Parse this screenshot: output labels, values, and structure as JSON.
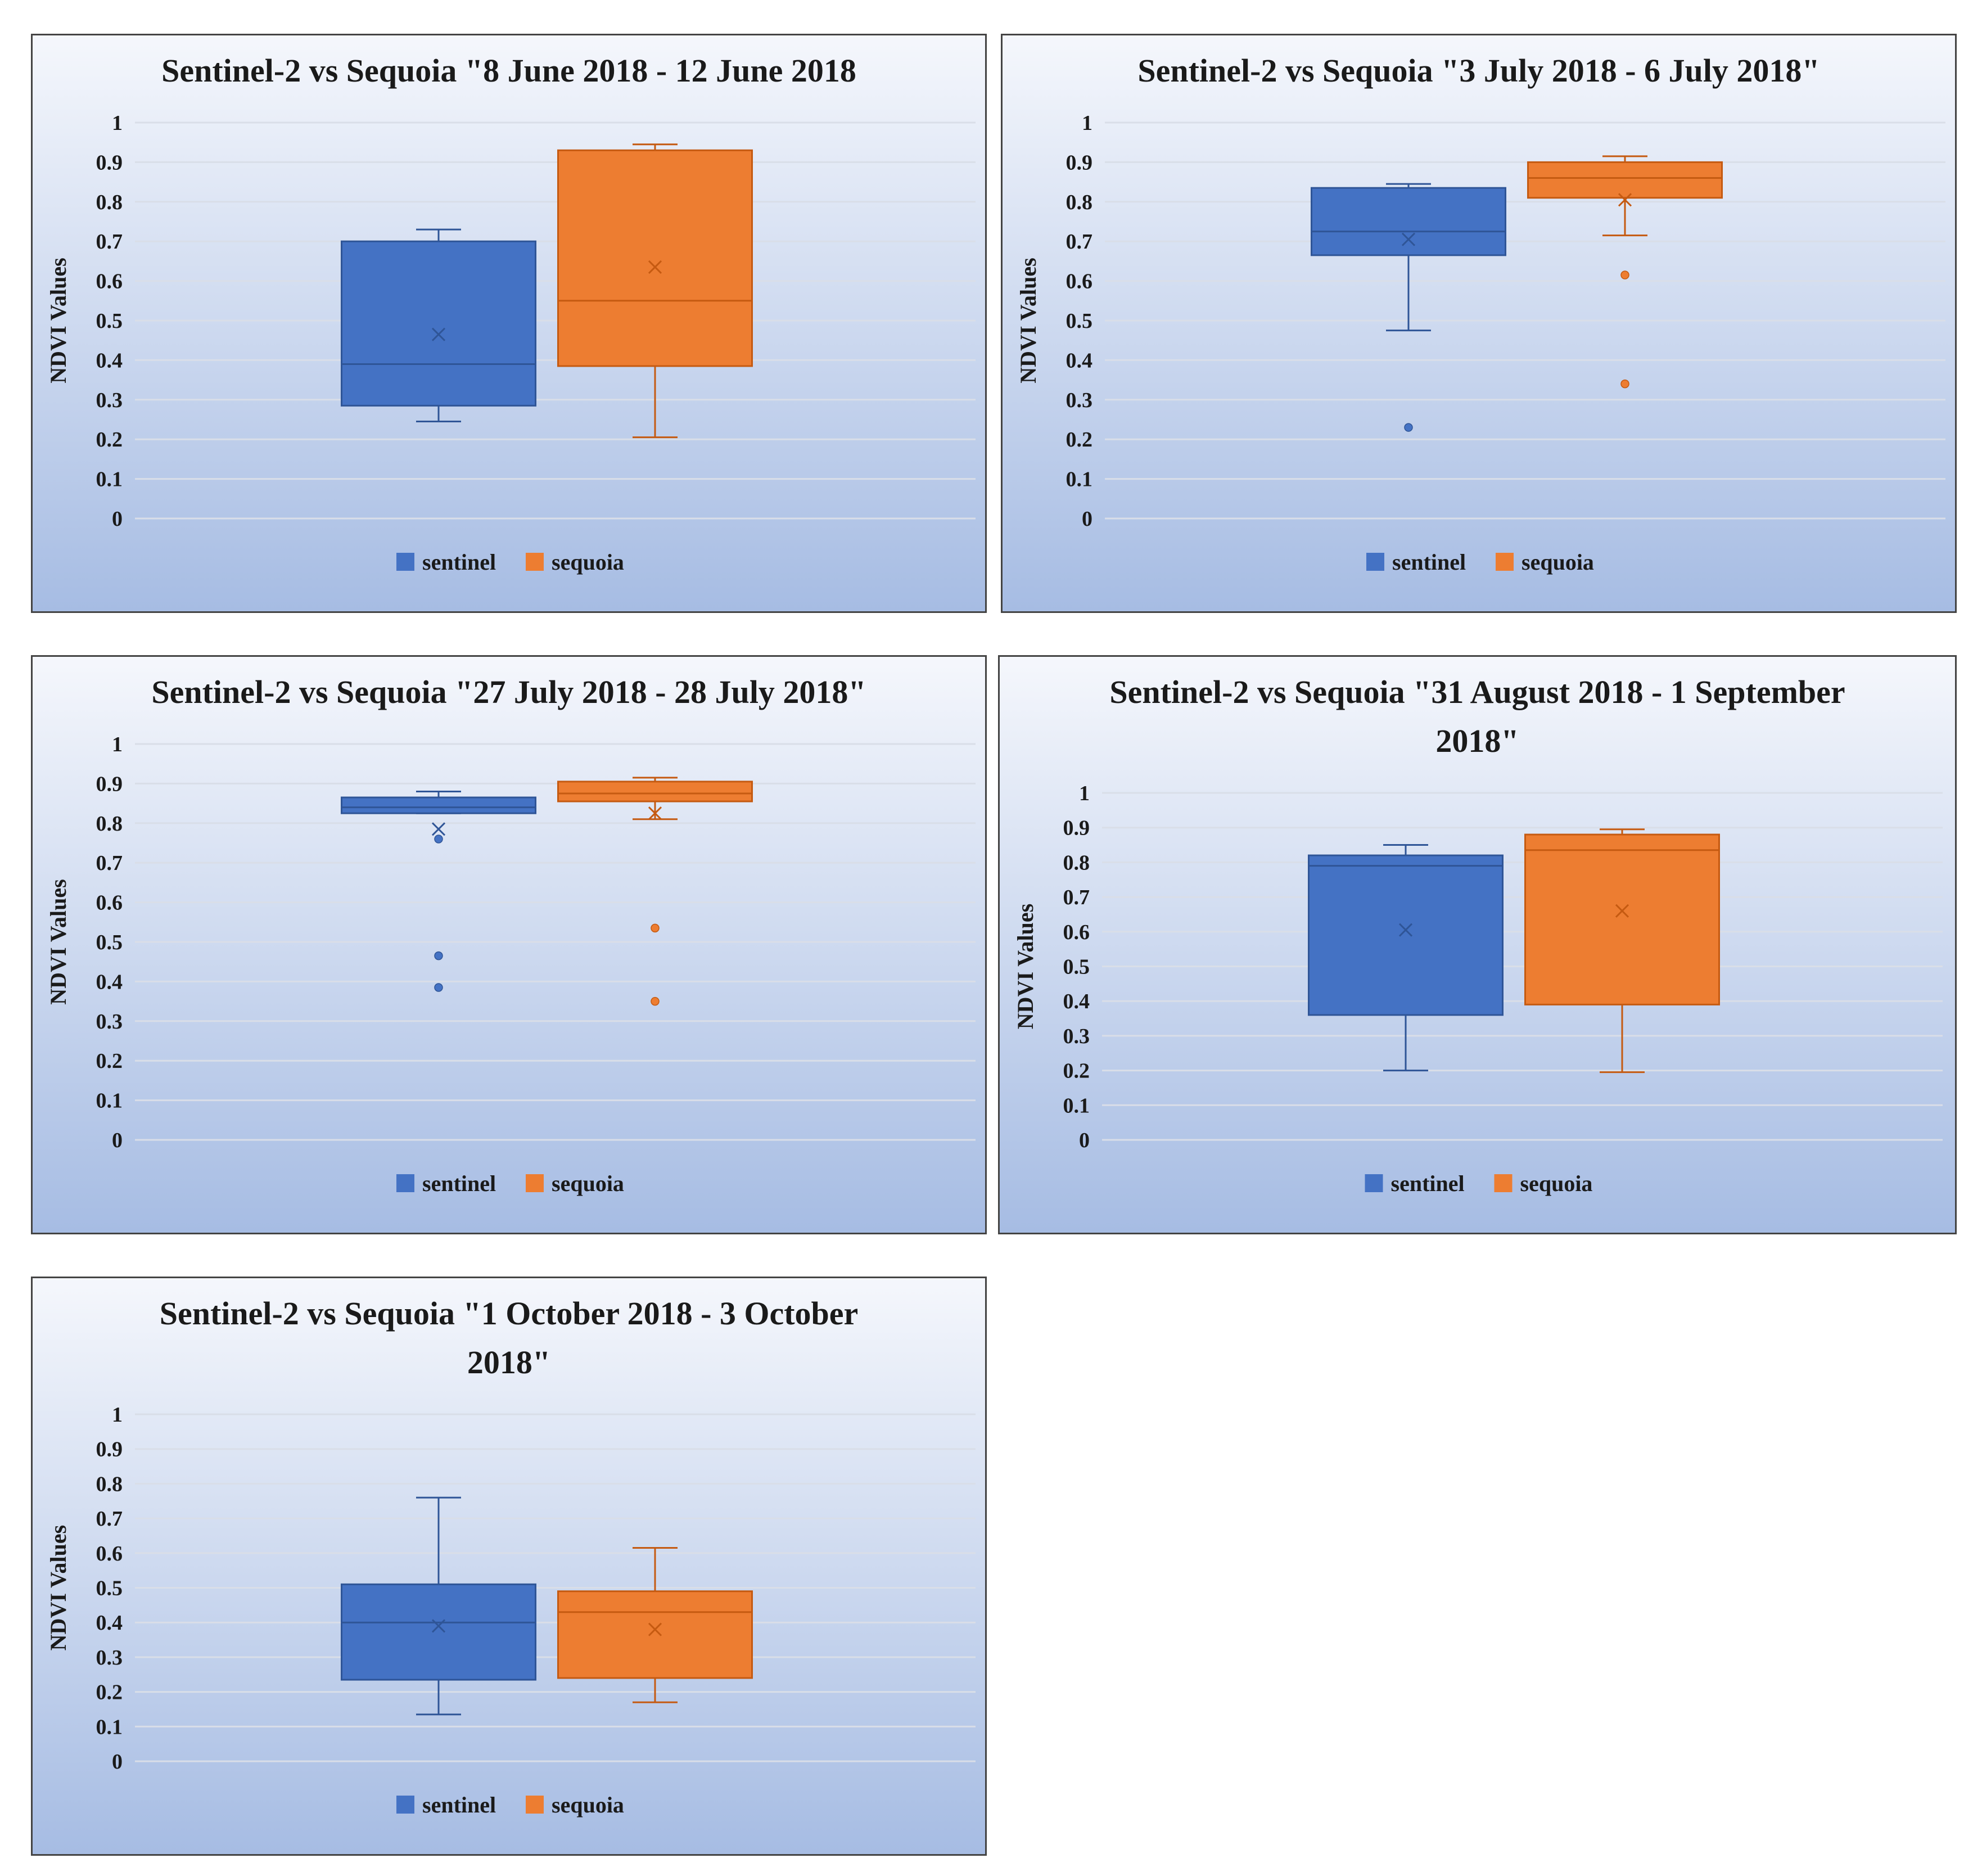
{
  "colors": {
    "sentinel_fill": "#4472C4",
    "sentinel_line": "#2F5597",
    "sequoia_fill": "#ED7D31",
    "sequoia_line": "#C55A11",
    "grid": "#D9DEE8",
    "frame": "#444444"
  },
  "chart_data": [
    {
      "type": "box",
      "title_lines": [
        "Sentinel-2 vs Sequoia \"8 June 2018 - 12 June 2018"
      ],
      "ylabel": "NDVI Values",
      "ylim": [
        0,
        1
      ],
      "ticks": [
        "0",
        "0.1",
        "0.2",
        "0.3",
        "0.4",
        "0.5",
        "0.6",
        "0.7",
        "0.8",
        "0.9",
        "1"
      ],
      "legend": [
        "sentinel",
        "sequoia"
      ],
      "series": [
        {
          "name": "sentinel",
          "min": 0.245,
          "q1": 0.285,
          "median": 0.39,
          "q3": 0.7,
          "max": 0.73,
          "mean": 0.465,
          "outliers": []
        },
        {
          "name": "sequoia",
          "min": 0.205,
          "q1": 0.385,
          "median": 0.55,
          "q3": 0.93,
          "max": 0.945,
          "mean": 0.635,
          "outliers": []
        }
      ]
    },
    {
      "type": "box",
      "title_lines": [
        "Sentinel-2 vs Sequoia \"3 July 2018 - 6 July 2018\""
      ],
      "ylabel": "NDVI Values",
      "ylim": [
        0,
        1
      ],
      "ticks": [
        "0",
        "0.1",
        "0.2",
        "0.3",
        "0.4",
        "0.5",
        "0.6",
        "0.7",
        "0.8",
        "0.9",
        "1"
      ],
      "legend": [
        "sentinel",
        "sequoia"
      ],
      "series": [
        {
          "name": "sentinel",
          "min": 0.475,
          "q1": 0.665,
          "median": 0.725,
          "q3": 0.835,
          "max": 0.845,
          "mean": 0.705,
          "outliers": [
            0.23
          ]
        },
        {
          "name": "sequoia",
          "min": 0.715,
          "q1": 0.81,
          "median": 0.86,
          "q3": 0.9,
          "max": 0.915,
          "mean": 0.805,
          "outliers": [
            0.615,
            0.34
          ]
        }
      ]
    },
    {
      "type": "box",
      "title_lines": [
        "Sentinel-2 vs Sequoia \"27 July 2018 - 28 July 2018\""
      ],
      "ylabel": "NDVI Values",
      "ylim": [
        0,
        1
      ],
      "ticks": [
        "0",
        "0.1",
        "0.2",
        "0.3",
        "0.4",
        "0.5",
        "0.6",
        "0.7",
        "0.8",
        "0.9",
        "1"
      ],
      "legend": [
        "sentinel",
        "sequoia"
      ],
      "series": [
        {
          "name": "sentinel",
          "min": 0.825,
          "q1": 0.825,
          "median": 0.84,
          "q3": 0.865,
          "max": 0.88,
          "mean": 0.785,
          "outliers": [
            0.76,
            0.465,
            0.385
          ]
        },
        {
          "name": "sequoia",
          "min": 0.81,
          "q1": 0.855,
          "median": 0.875,
          "q3": 0.905,
          "max": 0.915,
          "mean": 0.825,
          "outliers": [
            0.535,
            0.35
          ]
        }
      ]
    },
    {
      "type": "box",
      "title_lines": [
        "Sentinel-2 vs Sequoia \"31 August 2018 - 1 September",
        "2018\""
      ],
      "ylabel": "NDVI Values",
      "ylim": [
        0,
        1
      ],
      "ticks": [
        "0",
        "0.1",
        "0.2",
        "0.3",
        "0.4",
        "0.5",
        "0.6",
        "0.7",
        "0.8",
        "0.9",
        "1"
      ],
      "legend": [
        "sentinel",
        "sequoia"
      ],
      "series": [
        {
          "name": "sentinel",
          "min": 0.2,
          "q1": 0.36,
          "median": 0.79,
          "q3": 0.82,
          "max": 0.85,
          "mean": 0.605,
          "outliers": []
        },
        {
          "name": "sequoia",
          "min": 0.195,
          "q1": 0.39,
          "median": 0.835,
          "q3": 0.88,
          "max": 0.895,
          "mean": 0.66,
          "outliers": []
        }
      ]
    },
    {
      "type": "box",
      "title_lines": [
        "Sentinel-2 vs Sequoia \"1 October 2018 - 3 October",
        "2018\""
      ],
      "ylabel": "NDVI Values",
      "ylim": [
        0,
        1
      ],
      "ticks": [
        "0",
        "0.1",
        "0.2",
        "0.3",
        "0.4",
        "0.5",
        "0.6",
        "0.7",
        "0.8",
        "0.9",
        "1"
      ],
      "legend": [
        "sentinel",
        "sequoia"
      ],
      "series": [
        {
          "name": "sentinel",
          "min": 0.135,
          "q1": 0.235,
          "median": 0.4,
          "q3": 0.51,
          "max": 0.76,
          "mean": 0.39,
          "outliers": []
        },
        {
          "name": "sequoia",
          "min": 0.17,
          "q1": 0.24,
          "median": 0.43,
          "q3": 0.49,
          "max": 0.615,
          "mean": 0.38,
          "outliers": []
        }
      ]
    }
  ]
}
